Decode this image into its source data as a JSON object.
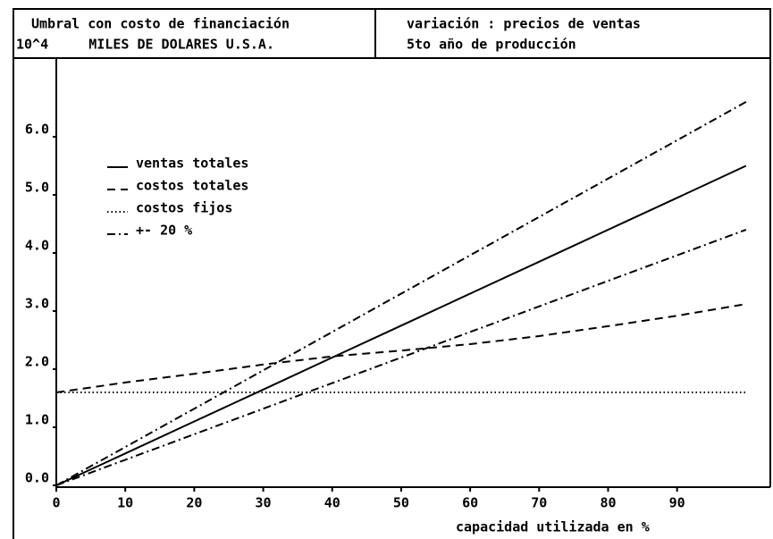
{
  "chart_data": {
    "type": "line",
    "title": "Umbral con costo de financiación",
    "subtitle": "10^4     MILES DE DOLARES U.S.A.",
    "header_right": [
      "variación : precios de ventas",
      "5to año de producción"
    ],
    "x_label": "capacidad utilizada en %",
    "x": [
      0,
      10,
      20,
      30,
      40,
      50,
      60,
      70,
      80,
      90,
      100
    ],
    "xlim": [
      0,
      103
    ],
    "xticks": [
      0,
      10,
      20,
      30,
      40,
      50,
      60,
      70,
      80,
      90
    ],
    "ylim": [
      0,
      7.2
    ],
    "yticks": [
      {
        "value": 0,
        "label": "0.0"
      },
      {
        "value": 1,
        "label": "1.0"
      },
      {
        "value": 2,
        "label": "2.0"
      },
      {
        "value": 3,
        "label": "3.0"
      },
      {
        "value": 4,
        "label": "4.0"
      },
      {
        "value": 5,
        "label": "5.0"
      },
      {
        "value": 6,
        "label": "6.0"
      }
    ],
    "series": [
      {
        "name": "ventas totales",
        "color": "#000000",
        "dash": "solid",
        "values": [
          0,
          0.55,
          1.1,
          1.65,
          2.2,
          2.75,
          3.3,
          3.85,
          4.4,
          4.95,
          5.5
        ]
      },
      {
        "name": "costos totales",
        "color": "#000000",
        "dash": "dashed",
        "values": [
          1.6,
          1.77,
          1.92,
          2.08,
          2.22,
          2.32,
          2.43,
          2.57,
          2.74,
          2.92,
          3.12
        ]
      },
      {
        "name": "costos fijos",
        "color": "#000000",
        "dash": "dotted",
        "values": [
          1.6,
          1.6,
          1.6,
          1.6,
          1.6,
          1.6,
          1.6,
          1.6,
          1.6,
          1.6,
          1.6
        ]
      },
      {
        "name": "+- 20 %",
        "color": "#000000",
        "dash": "dashdot",
        "values": [
          0,
          0.66,
          1.32,
          1.98,
          2.64,
          3.3,
          3.96,
          4.62,
          5.28,
          5.94,
          6.6
        ],
        "lower": [
          0,
          0.44,
          0.88,
          1.32,
          1.76,
          2.2,
          2.64,
          3.08,
          3.52,
          3.96,
          4.4
        ]
      }
    ]
  }
}
